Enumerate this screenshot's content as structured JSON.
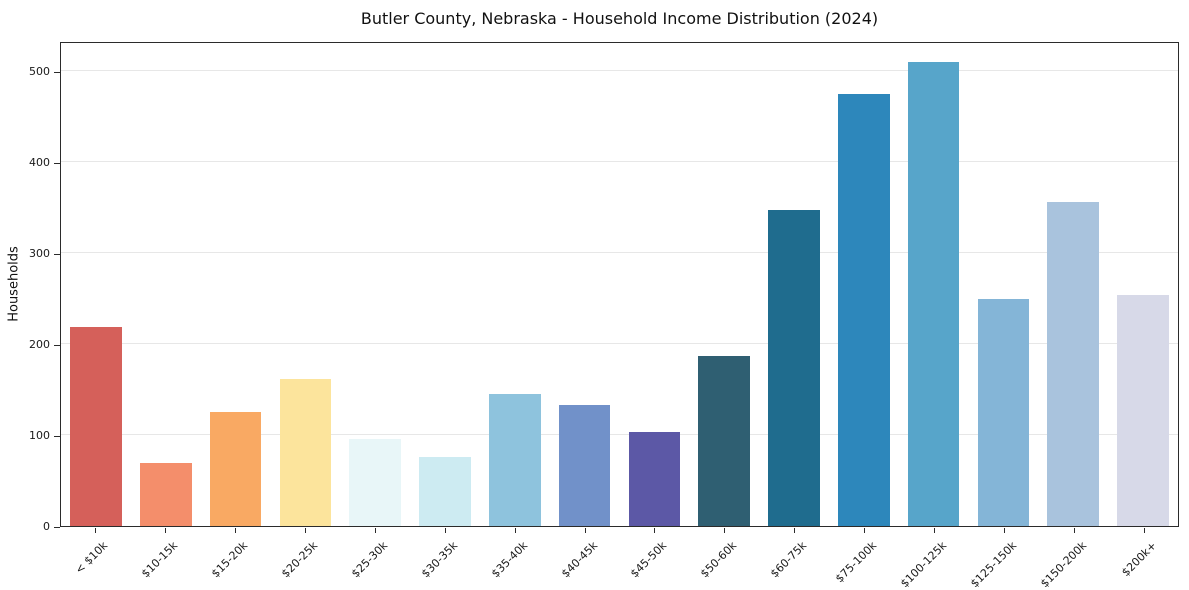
{
  "chart_data": {
    "type": "bar",
    "title": "Butler County, Nebraska - Household Income Distribution (2024)",
    "xlabel": "",
    "ylabel": "Households",
    "categories": [
      "< $10k",
      "$10-15k",
      "$15-20k",
      "$20-25k",
      "$25-30k",
      "$30-35k",
      "$35-40k",
      "$40-45k",
      "$45-50k",
      "$50-60k",
      "$60-75k",
      "$75-100k",
      "$100-125k",
      "$125-150k",
      "$150-200k",
      "$200k+"
    ],
    "values": [
      220,
      70,
      126,
      162,
      96,
      76,
      146,
      134,
      104,
      188,
      349,
      477,
      512,
      250,
      358,
      255
    ],
    "bar_colors": [
      "#d5605a",
      "#f48e6b",
      "#f9a963",
      "#fce49c",
      "#e8f6f8",
      "#cdebf2",
      "#8ec3dd",
      "#7191c9",
      "#5c58a6",
      "#2f5f72",
      "#1f6c8e",
      "#2d87bb",
      "#57a5ca",
      "#84b5d7",
      "#a9c3dd",
      "#d7d9e8"
    ],
    "ylim": [
      0,
      533
    ],
    "yticks": [
      0,
      100,
      200,
      300,
      400,
      500
    ],
    "grid": true,
    "legend": "none"
  }
}
